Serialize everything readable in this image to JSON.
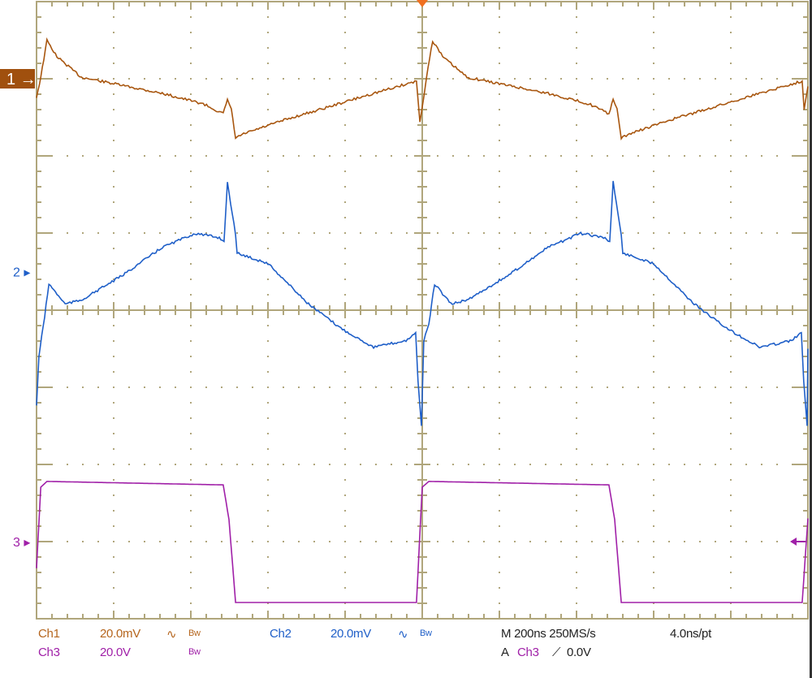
{
  "chart_data": {
    "type": "line",
    "title": "",
    "x_unit": "ns",
    "xlim": [
      -1000,
      1000
    ],
    "x_divisions": 10,
    "y_divisions": 8,
    "grid": true,
    "series": [
      {
        "name": "Ch1",
        "color": "#a8560f",
        "scale_per_div": 20,
        "unit": "mV",
        "ground_div": 3,
        "marker": "1",
        "points": [
          [
            -1000,
            -4.8
          ],
          [
            -989,
            0.4
          ],
          [
            -973,
            9.9
          ],
          [
            -947,
            5.7
          ],
          [
            -884,
            0.4
          ],
          [
            -779,
            -1.7
          ],
          [
            -674,
            -3.8
          ],
          [
            -568,
            -6.5
          ],
          [
            -516,
            -9.1
          ],
          [
            -505,
            -5.3
          ],
          [
            -495,
            -8
          ],
          [
            -484,
            -15.4
          ],
          [
            -463,
            -14.3
          ],
          [
            -358,
            -10.7
          ],
          [
            -253,
            -7.6
          ],
          [
            -147,
            -4.4
          ],
          [
            -15,
            -0.6
          ],
          [
            -6,
            -11.2
          ],
          [
            4,
            -4.8
          ],
          [
            11,
            0.4
          ],
          [
            27,
            9.9
          ],
          [
            53,
            5.7
          ],
          [
            116,
            0.4
          ],
          [
            221,
            -1.7
          ],
          [
            326,
            -3.8
          ],
          [
            432,
            -6.5
          ],
          [
            484,
            -9.1
          ],
          [
            495,
            -5.3
          ],
          [
            505,
            -8
          ],
          [
            516,
            -15.4
          ],
          [
            537,
            -14.3
          ],
          [
            642,
            -10.7
          ],
          [
            747,
            -7.6
          ],
          [
            853,
            -4.4
          ],
          [
            985,
            -0.6
          ],
          [
            990,
            -8
          ],
          [
            1000,
            -2
          ]
        ]
      },
      {
        "name": "Ch2",
        "color": "#1f5fc8",
        "scale_per_div": 20,
        "unit": "mV",
        "ground_div": 0.5,
        "marker": "2",
        "points": [
          [
            -1000,
            -34.7
          ],
          [
            -994,
            -22
          ],
          [
            -979,
            -11.6
          ],
          [
            -968,
            -3.2
          ],
          [
            -926,
            -8.4
          ],
          [
            -884,
            -7.4
          ],
          [
            -779,
            -1.1
          ],
          [
            -674,
            6.3
          ],
          [
            -589,
            9.9
          ],
          [
            -526,
            8.8
          ],
          [
            -514,
            7.8
          ],
          [
            -505,
            23.2
          ],
          [
            -484,
            9.5
          ],
          [
            -480,
            4.8
          ],
          [
            -400,
            2.1
          ],
          [
            -295,
            -8.4
          ],
          [
            -211,
            -14.7
          ],
          [
            -126,
            -19.6
          ],
          [
            -42,
            -17.9
          ],
          [
            -17,
            -15.8
          ],
          [
            -11,
            -28.4
          ],
          [
            -2,
            -40
          ],
          [
            4,
            -17.9
          ],
          [
            17,
            -13.7
          ],
          [
            32,
            -3.2
          ],
          [
            74,
            -8.4
          ],
          [
            116,
            -7.4
          ],
          [
            221,
            -1.1
          ],
          [
            326,
            6.3
          ],
          [
            411,
            9.9
          ],
          [
            474,
            8.8
          ],
          [
            486,
            7.8
          ],
          [
            495,
            23.2
          ],
          [
            516,
            9.5
          ],
          [
            520,
            4.8
          ],
          [
            600,
            2.1
          ],
          [
            705,
            -8.4
          ],
          [
            789,
            -14.7
          ],
          [
            874,
            -19.6
          ],
          [
            958,
            -17.9
          ],
          [
            983,
            -15.8
          ],
          [
            989,
            -28.4
          ],
          [
            998,
            -40
          ],
          [
            1000,
            -20
          ]
        ]
      },
      {
        "name": "Ch3",
        "color": "#a020a8",
        "scale_per_div": 20,
        "unit": "V",
        "ground_div": -3,
        "marker": "3",
        "points": [
          [
            -1000,
            -6.9
          ],
          [
            -989,
            14.1
          ],
          [
            -973,
            15.6
          ],
          [
            -516,
            14.7
          ],
          [
            -501,
            5.7
          ],
          [
            -484,
            -15.8
          ],
          [
            -15,
            -15.8
          ],
          [
            0,
            14.1
          ],
          [
            17,
            15.6
          ],
          [
            484,
            14.7
          ],
          [
            499,
            5.7
          ],
          [
            516,
            -15.8
          ],
          [
            985,
            -15.8
          ],
          [
            1000,
            6
          ]
        ]
      }
    ]
  },
  "status": {
    "ch1": {
      "label": "Ch1",
      "scale": "20.0mV",
      "coupling_icon": "ac-coupling-icon",
      "bw": "Bw"
    },
    "ch2": {
      "label": "Ch2",
      "scale": "20.0mV",
      "coupling_icon": "ac-coupling-icon",
      "bw": "Bw"
    },
    "ch3": {
      "label": "Ch3",
      "scale": "20.0V",
      "bw": "Bw"
    },
    "timebase": "M 200ns 250MS/s",
    "resolution": "4.0ns/pt",
    "trigger": {
      "prefix": "A",
      "source": "Ch3",
      "slope_icon": "rising-edge-icon",
      "level": "0.0V"
    }
  },
  "colors": {
    "grid": "#b0a67c",
    "trigger_marker": "#f07020"
  }
}
